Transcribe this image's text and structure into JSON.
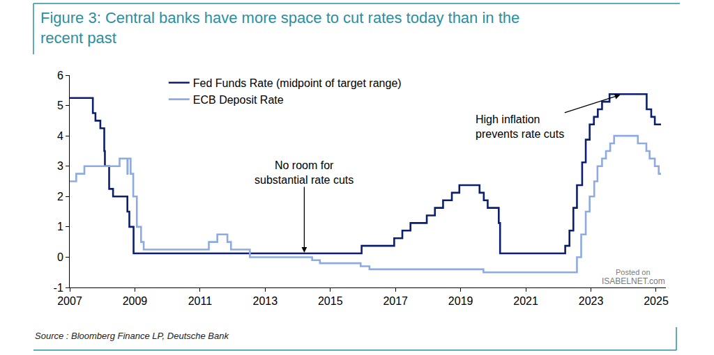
{
  "chart_data": {
    "type": "line",
    "title": "Figure 3: Central banks have more space to cut rates today than in the recent past",
    "source": "Source : Bloomberg Finance LP, Deutsche Bank",
    "watermark": [
      "Posted on",
      "ISABELNET.com"
    ],
    "line_style": "step",
    "legend": "top left",
    "grid": false,
    "xlim": [
      2007,
      2025.3
    ],
    "xticks": [
      2007,
      2009,
      2011,
      2013,
      2015,
      2017,
      2019,
      2021,
      2023,
      2025
    ],
    "ylim": [
      -1,
      6
    ],
    "yticks": [
      -1,
      0,
      1,
      2,
      3,
      4,
      5,
      6
    ],
    "series": [
      {
        "name": "Fed Funds Rate (midpoint of target range)",
        "color": "#0c1f6e",
        "x": [
          2007.0,
          2007.71,
          2007.79,
          2007.94,
          2008.06,
          2008.08,
          2008.21,
          2008.33,
          2008.77,
          2008.83,
          2008.96,
          2015.96,
          2016.96,
          2017.21,
          2017.46,
          2017.96,
          2018.21,
          2018.46,
          2018.73,
          2018.96,
          2019.58,
          2019.71,
          2019.83,
          2020.17,
          2020.21,
          2022.21,
          2022.34,
          2022.46,
          2022.57,
          2022.73,
          2022.84,
          2022.96,
          2023.09,
          2023.21,
          2023.34,
          2023.57,
          2024.71,
          2024.85,
          2024.96,
          2025.15
        ],
        "values": [
          5.25,
          4.75,
          4.5,
          4.25,
          3.5,
          3.0,
          2.25,
          2.0,
          1.5,
          1.0,
          0.125,
          0.375,
          0.625,
          0.875,
          1.125,
          1.375,
          1.625,
          1.875,
          2.125,
          2.375,
          2.125,
          1.875,
          1.625,
          1.125,
          0.125,
          0.375,
          0.875,
          1.625,
          2.375,
          3.125,
          3.875,
          4.375,
          4.625,
          4.875,
          5.125,
          5.375,
          4.875,
          4.625,
          4.375,
          4.375
        ]
      },
      {
        "name": "ECB Deposit Rate",
        "color": "#8eaae2",
        "x": [
          2007.0,
          2007.2,
          2007.45,
          2008.53,
          2008.77,
          2008.78,
          2008.87,
          2008.95,
          2009.06,
          2009.19,
          2009.27,
          2011.27,
          2011.53,
          2011.84,
          2011.95,
          2012.53,
          2014.44,
          2014.68,
          2015.93,
          2016.2,
          2019.7,
          2022.57,
          2022.7,
          2022.84,
          2022.96,
          2023.1,
          2023.2,
          2023.34,
          2023.46,
          2023.59,
          2023.71,
          2024.44,
          2024.7,
          2024.8,
          2024.96,
          2025.08,
          2025.15
        ],
        "values": [
          2.5,
          2.75,
          3.0,
          3.25,
          2.75,
          3.25,
          2.75,
          2.0,
          1.0,
          0.5,
          0.25,
          0.5,
          0.75,
          0.5,
          0.25,
          0.0,
          -0.1,
          -0.2,
          -0.3,
          -0.4,
          -0.5,
          0.0,
          0.75,
          1.5,
          2.0,
          2.5,
          3.0,
          3.25,
          3.5,
          3.75,
          4.0,
          3.75,
          3.5,
          3.25,
          3.0,
          2.75,
          2.75
        ]
      }
    ],
    "annotations": [
      {
        "lines": [
          "No room for",
          "substantial rate cuts"
        ],
        "x": 2014.2,
        "y": 0.15
      },
      {
        "lines": [
          "High inflation",
          "prevents rate cuts"
        ],
        "x": 2023.9,
        "y": 5.35
      }
    ]
  }
}
